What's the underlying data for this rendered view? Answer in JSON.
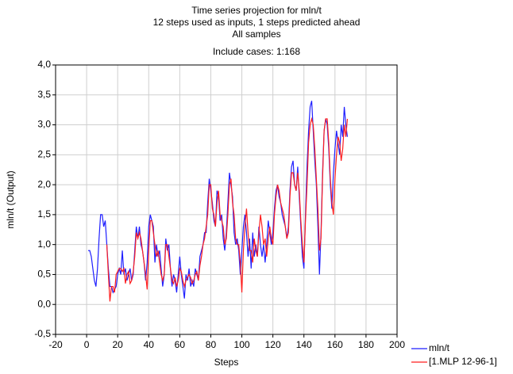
{
  "chart_data": {
    "type": "line",
    "title": "Time series projection for mln/t",
    "subtitle": [
      "12 steps used as inputs, 1 steps predicted ahead",
      "All samples",
      "Include cases: 1:168"
    ],
    "xlabel": "Steps",
    "ylabel": "mln/t (Output)",
    "x": [
      1,
      2,
      3,
      4,
      5,
      6,
      7,
      8,
      9,
      10,
      11,
      12,
      13,
      14,
      15,
      16,
      17,
      18,
      19,
      20,
      21,
      22,
      23,
      24,
      25,
      26,
      27,
      28,
      29,
      30,
      31,
      32,
      33,
      34,
      35,
      36,
      37,
      38,
      39,
      40,
      41,
      42,
      43,
      44,
      45,
      46,
      47,
      48,
      49,
      50,
      51,
      52,
      53,
      54,
      55,
      56,
      57,
      58,
      59,
      60,
      61,
      62,
      63,
      64,
      65,
      66,
      67,
      68,
      69,
      70,
      71,
      72,
      73,
      74,
      75,
      76,
      77,
      78,
      79,
      80,
      81,
      82,
      83,
      84,
      85,
      86,
      87,
      88,
      89,
      90,
      91,
      92,
      93,
      94,
      95,
      96,
      97,
      98,
      99,
      100,
      101,
      102,
      103,
      104,
      105,
      106,
      107,
      108,
      109,
      110,
      111,
      112,
      113,
      114,
      115,
      116,
      117,
      118,
      119,
      120,
      121,
      122,
      123,
      124,
      125,
      126,
      127,
      128,
      129,
      130,
      131,
      132,
      133,
      134,
      135,
      136,
      137,
      138,
      139,
      140,
      141,
      142,
      143,
      144,
      145,
      146,
      147,
      148,
      149,
      150,
      151,
      152,
      153,
      154,
      155,
      156,
      157,
      158,
      159,
      160,
      161,
      162,
      163,
      164,
      165,
      166,
      167,
      168
    ],
    "series": [
      {
        "name": "mln/t",
        "color": "#1f1fff",
        "values": [
          0.9,
          0.9,
          0.8,
          0.6,
          0.4,
          0.3,
          0.6,
          1.1,
          1.5,
          1.5,
          1.3,
          1.4,
          1.0,
          0.6,
          0.3,
          0.3,
          0.2,
          0.25,
          0.3,
          0.5,
          0.6,
          0.5,
          0.9,
          0.5,
          0.6,
          0.4,
          0.5,
          0.6,
          0.4,
          0.5,
          0.9,
          1.3,
          1.1,
          1.3,
          1.0,
          0.9,
          0.7,
          0.4,
          0.7,
          1.3,
          1.5,
          1.4,
          1.3,
          0.7,
          1.0,
          0.8,
          0.9,
          0.6,
          0.3,
          0.5,
          1.1,
          0.9,
          1.0,
          0.6,
          0.3,
          0.5,
          0.4,
          0.2,
          0.5,
          0.8,
          0.5,
          0.3,
          0.1,
          0.5,
          0.4,
          0.6,
          0.3,
          0.4,
          0.3,
          0.6,
          0.5,
          0.4,
          0.8,
          0.9,
          1.0,
          1.2,
          1.2,
          1.7,
          2.1,
          1.9,
          1.7,
          1.4,
          1.3,
          1.9,
          1.8,
          1.4,
          1.5,
          1.1,
          0.9,
          1.2,
          1.7,
          2.2,
          2.0,
          1.8,
          1.2,
          1.0,
          1.1,
          0.9,
          0.5,
          0.9,
          1.3,
          1.5,
          1.2,
          0.8,
          1.1,
          0.6,
          1.2,
          0.8,
          1.0,
          0.8,
          1.3,
          1.0,
          0.8,
          1.0,
          0.7,
          1.0,
          1.4,
          1.2,
          1.0,
          1.2,
          1.6,
          1.9,
          2.0,
          1.8,
          1.7,
          1.5,
          1.4,
          1.3,
          1.1,
          1.3,
          1.9,
          2.3,
          2.4,
          2.0,
          1.9,
          2.3,
          1.8,
          1.3,
          0.8,
          0.6,
          1.5,
          2.3,
          2.9,
          3.3,
          3.4,
          2.9,
          2.4,
          2.0,
          1.3,
          0.5,
          1.2,
          2.2,
          2.9,
          3.1,
          3.0,
          2.6,
          2.0,
          1.6,
          2.2,
          2.6,
          2.9,
          2.7,
          2.5,
          3.0,
          2.8,
          3.3,
          3.0,
          2.8
        ]
      },
      {
        "name": "[1.MLP 12-96-1]",
        "color": "#ff1f1f",
        "values": [
          null,
          null,
          null,
          null,
          null,
          null,
          null,
          null,
          null,
          null,
          null,
          null,
          1.0,
          0.5,
          0.05,
          0.3,
          0.3,
          0.2,
          0.5,
          0.55,
          0.6,
          0.6,
          0.55,
          0.6,
          0.35,
          0.5,
          0.55,
          0.35,
          0.4,
          0.55,
          0.8,
          1.2,
          1.1,
          1.2,
          1.1,
          0.9,
          0.7,
          0.5,
          0.25,
          0.9,
          1.4,
          1.4,
          1.2,
          1.0,
          0.8,
          0.9,
          0.7,
          0.5,
          0.4,
          0.5,
          1.0,
          1.0,
          0.8,
          0.6,
          0.4,
          0.35,
          0.45,
          0.3,
          0.4,
          0.6,
          0.55,
          0.4,
          0.3,
          0.4,
          0.45,
          0.5,
          0.45,
          0.35,
          0.4,
          0.5,
          0.55,
          0.4,
          0.65,
          0.8,
          1.0,
          1.1,
          1.3,
          1.5,
          2.0,
          2.0,
          1.6,
          1.5,
          1.3,
          1.7,
          1.9,
          1.5,
          1.4,
          1.3,
          1.0,
          1.1,
          1.5,
          2.0,
          2.1,
          1.7,
          1.5,
          1.1,
          1.0,
          1.0,
          0.7,
          0.2,
          0.9,
          1.3,
          1.6,
          1.2,
          0.9,
          0.9,
          0.7,
          1.1,
          0.9,
          0.8,
          1.2,
          1.5,
          1.3,
          1.0,
          1.1,
          0.8,
          1.1,
          1.3,
          1.1,
          1.0,
          1.5,
          1.8,
          2.0,
          1.9,
          1.7,
          1.6,
          1.5,
          1.3,
          1.1,
          1.2,
          1.8,
          2.2,
          2.2,
          2.0,
          1.9,
          2.2,
          1.9,
          1.4,
          1.0,
          0.7,
          1.4,
          2.0,
          2.7,
          3.0,
          3.1,
          3.0,
          2.6,
          2.1,
          1.6,
          0.9,
          1.1,
          2.1,
          2.9,
          3.1,
          3.1,
          2.7,
          2.1,
          1.7,
          1.5,
          2.1,
          2.5,
          2.8,
          2.7,
          2.4,
          2.6,
          3.0,
          2.8,
          3.1
        ]
      }
    ],
    "xlim": [
      -20,
      200
    ],
    "xticks": [
      -20,
      0,
      20,
      40,
      60,
      80,
      100,
      120,
      140,
      160,
      180,
      200
    ],
    "ylim": [
      -0.5,
      4.0
    ],
    "yticks": [
      {
        "value": -0.5,
        "label": "-0,5"
      },
      {
        "value": 0,
        "label": "0,0"
      },
      {
        "value": 0.5,
        "label": "0,5"
      },
      {
        "value": 1.0,
        "label": "1,0"
      },
      {
        "value": 1.5,
        "label": "1,5"
      },
      {
        "value": 2.0,
        "label": "2,0"
      },
      {
        "value": 2.5,
        "label": "2,5"
      },
      {
        "value": 3.0,
        "label": "3,0"
      },
      {
        "value": 3.5,
        "label": "3,5"
      },
      {
        "value": 4.0,
        "label": "4,0"
      }
    ],
    "grid": true,
    "legend": "bottom-right"
  }
}
